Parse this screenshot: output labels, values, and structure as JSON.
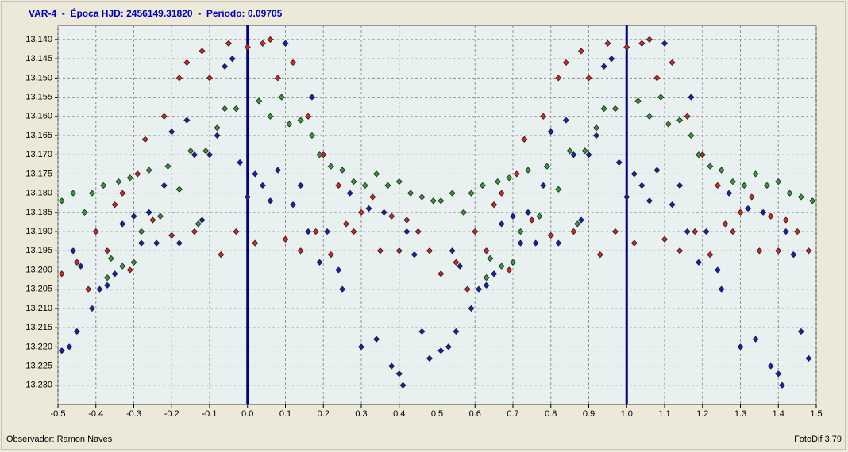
{
  "chart_data": {
    "type": "scatter",
    "title": "VAR-4  -  Época HJD: 2456149.31820  -  Periodo: 0.09705",
    "observer": "Observador: Ramon Naves",
    "software": "FotoDif 3.79",
    "xlim": [
      -0.5,
      1.5
    ],
    "ylim": [
      13.1363,
      13.235
    ],
    "y_inverted": true,
    "grid": true,
    "vlines": [
      0,
      1
    ],
    "vline_color": "#000080",
    "xticks": [
      -0.5,
      -0.4,
      -0.3,
      -0.2,
      -0.1,
      {
        "value": 0,
        "label": "0.0"
      },
      0.1,
      0.2,
      0.3,
      0.4,
      0.5,
      0.6,
      0.7,
      0.8,
      0.9,
      {
        "value": 1,
        "label": "1.0"
      },
      1.1,
      1.2,
      1.3,
      1.4,
      1.5
    ],
    "yticks": [
      {
        "value": 13.14,
        "label": "13.140"
      },
      {
        "value": 13.145,
        "label": "13.145"
      },
      {
        "value": 13.15,
        "label": "13.150"
      },
      {
        "value": 13.155,
        "label": "13.155"
      },
      {
        "value": 13.16,
        "label": "13.160"
      },
      {
        "value": 13.165,
        "label": "13.165"
      },
      {
        "value": 13.17,
        "label": "13.170"
      },
      {
        "value": 13.175,
        "label": "13.175"
      },
      {
        "value": 13.18,
        "label": "13.180"
      },
      {
        "value": 13.185,
        "label": "13.185"
      },
      {
        "value": 13.19,
        "label": "13.190"
      },
      {
        "value": 13.195,
        "label": "13.195"
      },
      {
        "value": 13.2,
        "label": "13.200"
      },
      {
        "value": 13.205,
        "label": "13.205"
      },
      {
        "value": 13.21,
        "label": "13.210"
      },
      {
        "value": 13.215,
        "label": "13.215"
      },
      {
        "value": 13.22,
        "label": "13.220"
      },
      {
        "value": 13.225,
        "label": "13.225"
      },
      {
        "value": 13.23,
        "label": "13.230"
      }
    ],
    "series": [
      {
        "color": "#e02020",
        "x": [
          -0.49,
          -0.45,
          -0.42,
          -0.4,
          -0.37,
          -0.35,
          -0.33,
          -0.31,
          -0.29,
          -0.27,
          -0.25,
          -0.22,
          -0.2,
          -0.18,
          -0.16,
          -0.14,
          -0.12,
          -0.1,
          -0.07,
          -0.05,
          -0.03,
          0,
          0.02,
          0.04,
          0.06,
          0.08,
          0.1,
          0.12,
          0.14,
          0.16,
          0.18,
          0.2,
          0.22,
          0.24,
          0.26,
          0.28,
          0.3,
          0.33,
          0.35,
          0.38,
          0.4,
          0.42,
          0.45,
          0.48,
          0.51,
          0.55,
          0.58,
          0.6,
          0.63,
          0.65,
          0.67,
          0.69,
          0.71,
          0.73,
          0.75,
          0.78,
          0.8,
          0.82,
          0.84,
          0.86,
          0.88,
          0.9,
          0.93,
          0.95,
          0.97,
          1,
          1.02,
          1.04,
          1.06,
          1.08,
          1.1,
          1.12,
          1.14,
          1.16,
          1.18,
          1.2,
          1.22,
          1.24,
          1.26,
          1.28,
          1.3,
          1.33,
          1.35,
          1.38,
          1.4,
          1.42,
          1.45,
          1.48
        ],
        "values": [
          13.201,
          13.198,
          13.205,
          13.19,
          13.195,
          13.183,
          13.18,
          13.2,
          13.175,
          13.166,
          13.187,
          13.16,
          13.191,
          13.15,
          13.146,
          13.19,
          13.143,
          13.15,
          13.196,
          13.141,
          13.19,
          13.142,
          13.193,
          13.141,
          13.14,
          13.15,
          13.192,
          13.146,
          13.195,
          13.16,
          13.19,
          13.17,
          13.196,
          13.178,
          13.188,
          13.19,
          13.185,
          13.181,
          13.195,
          13.186,
          13.195,
          13.187,
          13.19,
          13.195,
          13.201,
          13.198,
          13.205,
          13.19,
          13.195,
          13.183,
          13.18,
          13.2,
          13.175,
          13.166,
          13.187,
          13.16,
          13.191,
          13.15,
          13.146,
          13.19,
          13.143,
          13.15,
          13.196,
          13.141,
          13.19,
          13.142,
          13.193,
          13.141,
          13.14,
          13.15,
          13.192,
          13.146,
          13.195,
          13.16,
          13.19,
          13.17,
          13.196,
          13.178,
          13.188,
          13.19,
          13.185,
          13.181,
          13.195,
          13.186,
          13.195,
          13.187,
          13.19,
          13.195
        ]
      },
      {
        "color": "#30a030",
        "x": [
          -0.49,
          -0.46,
          -0.43,
          -0.41,
          -0.38,
          -0.37,
          -0.36,
          -0.34,
          -0.33,
          -0.31,
          -0.3,
          -0.28,
          -0.26,
          -0.23,
          -0.21,
          -0.18,
          -0.15,
          -0.13,
          -0.11,
          -0.08,
          -0.06,
          -0.03,
          0.03,
          0.06,
          0.09,
          0.11,
          0.14,
          0.17,
          0.19,
          0.22,
          0.25,
          0.28,
          0.31,
          0.34,
          0.37,
          0.4,
          0.43,
          0.46,
          0.49,
          0.51,
          0.54,
          0.57,
          0.59,
          0.62,
          0.63,
          0.64,
          0.66,
          0.67,
          0.69,
          0.7,
          0.72,
          0.74,
          0.77,
          0.79,
          0.82,
          0.85,
          0.87,
          0.89,
          0.92,
          0.94,
          0.97,
          1.03,
          1.06,
          1.09,
          1.11,
          1.14,
          1.17,
          1.19,
          1.22,
          1.25,
          1.28,
          1.31,
          1.34,
          1.37,
          1.4,
          1.43,
          1.46,
          1.49
        ],
        "values": [
          13.182,
          13.18,
          13.185,
          13.18,
          13.178,
          13.202,
          13.197,
          13.177,
          13.199,
          13.176,
          13.198,
          13.19,
          13.174,
          13.186,
          13.173,
          13.179,
          13.169,
          13.188,
          13.169,
          13.163,
          13.158,
          13.158,
          13.156,
          13.16,
          13.155,
          13.162,
          13.161,
          13.165,
          13.17,
          13.173,
          13.174,
          13.177,
          13.178,
          13.175,
          13.178,
          13.177,
          13.18,
          13.181,
          13.182,
          13.182,
          13.18,
          13.185,
          13.18,
          13.178,
          13.202,
          13.197,
          13.177,
          13.199,
          13.176,
          13.198,
          13.19,
          13.174,
          13.186,
          13.173,
          13.179,
          13.169,
          13.188,
          13.169,
          13.163,
          13.158,
          13.158,
          13.156,
          13.16,
          13.155,
          13.162,
          13.161,
          13.165,
          13.17,
          13.173,
          13.174,
          13.177,
          13.178,
          13.175,
          13.178,
          13.177,
          13.18,
          13.181,
          13.182
        ]
      },
      {
        "color": "#1020c0",
        "x": [
          -0.49,
          -0.47,
          -0.46,
          -0.45,
          -0.44,
          -0.41,
          -0.39,
          -0.37,
          -0.35,
          -0.33,
          -0.3,
          -0.28,
          -0.26,
          -0.24,
          -0.22,
          -0.2,
          -0.18,
          -0.16,
          -0.14,
          -0.12,
          -0.1,
          -0.08,
          -0.06,
          -0.04,
          -0.02,
          0,
          0.02,
          0.04,
          0.06,
          0.08,
          0.1,
          0.12,
          0.14,
          0.16,
          0.17,
          0.19,
          0.21,
          0.24,
          0.25,
          0.27,
          0.3,
          0.32,
          0.34,
          0.36,
          0.38,
          0.4,
          0.41,
          0.42,
          0.44,
          0.46,
          0.48,
          0.51,
          0.53,
          0.54,
          0.55,
          0.56,
          0.59,
          0.61,
          0.63,
          0.65,
          0.67,
          0.7,
          0.72,
          0.74,
          0.76,
          0.78,
          0.8,
          0.82,
          0.84,
          0.86,
          0.88,
          0.9,
          0.92,
          0.94,
          0.96,
          0.98,
          1,
          1.02,
          1.04,
          1.06,
          1.08,
          1.1,
          1.12,
          1.14,
          1.16,
          1.17,
          1.19,
          1.21,
          1.24,
          1.25,
          1.27,
          1.3,
          1.32,
          1.34,
          1.36,
          1.38,
          1.4,
          1.41,
          1.42,
          1.44,
          1.46,
          1.48
        ],
        "values": [
          13.221,
          13.22,
          13.195,
          13.216,
          13.199,
          13.21,
          13.205,
          13.204,
          13.201,
          13.188,
          13.186,
          13.193,
          13.185,
          13.193,
          13.178,
          13.164,
          13.193,
          13.161,
          13.17,
          13.187,
          13.17,
          13.165,
          13.147,
          13.145,
          13.172,
          13.181,
          13.175,
          13.178,
          13.182,
          13.174,
          13.141,
          13.183,
          13.178,
          13.19,
          13.155,
          13.198,
          13.19,
          13.2,
          13.205,
          13.18,
          13.22,
          13.184,
          13.218,
          13.185,
          13.225,
          13.227,
          13.23,
          13.19,
          13.196,
          13.216,
          13.223,
          13.221,
          13.22,
          13.195,
          13.216,
          13.199,
          13.21,
          13.205,
          13.204,
          13.201,
          13.188,
          13.186,
          13.193,
          13.185,
          13.193,
          13.178,
          13.164,
          13.193,
          13.161,
          13.17,
          13.187,
          13.17,
          13.165,
          13.147,
          13.145,
          13.172,
          13.181,
          13.175,
          13.178,
          13.182,
          13.174,
          13.141,
          13.183,
          13.178,
          13.19,
          13.155,
          13.198,
          13.19,
          13.2,
          13.205,
          13.18,
          13.22,
          13.184,
          13.218,
          13.185,
          13.225,
          13.227,
          13.23,
          13.19,
          13.196,
          13.216,
          13.223
        ]
      }
    ]
  }
}
